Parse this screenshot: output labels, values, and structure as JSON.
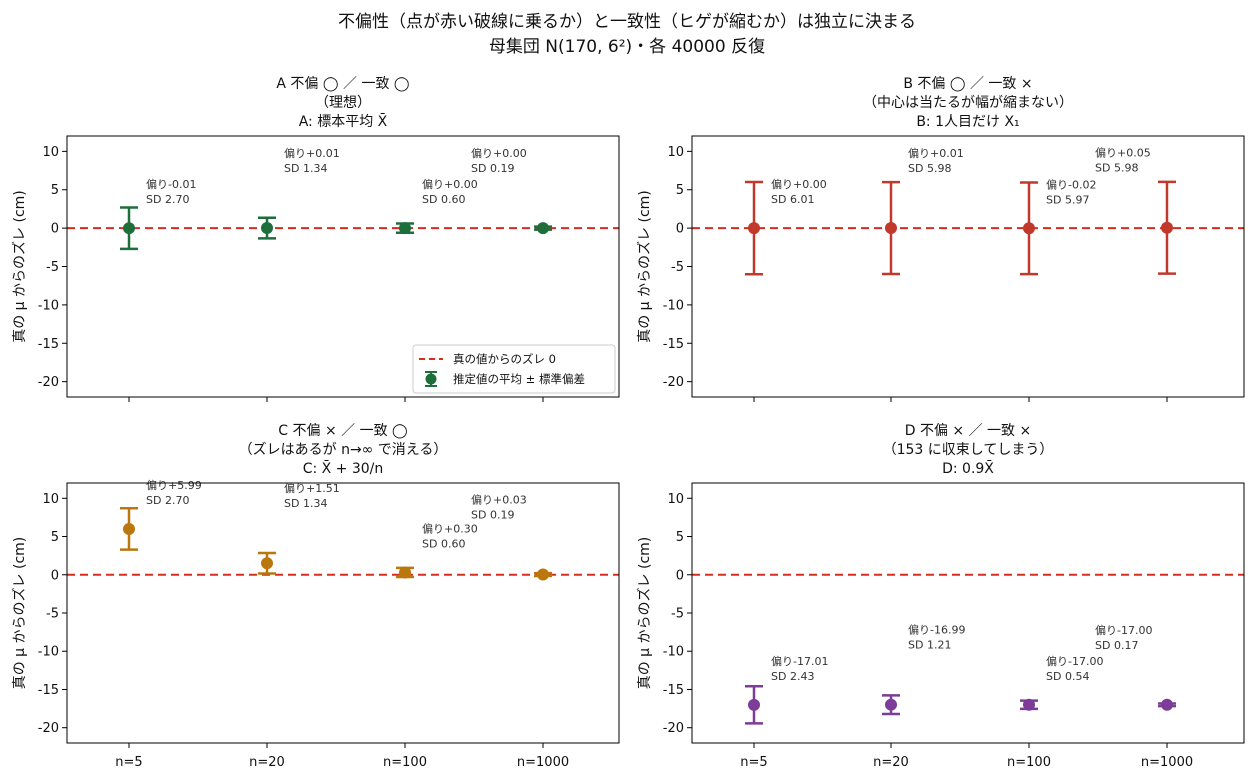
{
  "figure": {
    "suptitle_line1": "不偏性（点が赤い破線に乗るか）と一致性（ヒゲが縮むか）は独立に決まる",
    "suptitle_line2": "母集団 N(170, 6²)・各 40000 反復"
  },
  "colors": {
    "green": "#1e6e3c",
    "red": "#c0392b",
    "orange": "#b9770e",
    "purple": "#7d3c98",
    "ref_line": "#d62d20"
  },
  "chart_data": [
    {
      "type": "scatter",
      "panel": "A",
      "title_lines": [
        "A 不偏 ◯ ／ 一致 ◯",
        "（理想）",
        "A: 標本平均 X̄"
      ],
      "categories": [
        "n=5",
        "n=20",
        "n=100",
        "n=1000"
      ],
      "ylabel": "真の μ からのズレ (cm)",
      "ylim": [
        -22,
        12
      ],
      "yticks": [
        10,
        5,
        0,
        -5,
        -10,
        -15,
        -20
      ],
      "reference_line": 0,
      "color": "green",
      "series": [
        {
          "mean": [
            -0.01,
            0.01,
            0.0,
            0.0
          ],
          "sd": [
            2.7,
            1.34,
            0.6,
            0.19
          ]
        }
      ],
      "annotations": [
        {
          "bias": "偏り-0.01",
          "sd": "SD 2.70"
        },
        {
          "bias": "偏り+0.01",
          "sd": "SD 1.34"
        },
        {
          "bias": "偏り+0.00",
          "sd": "SD 0.60"
        },
        {
          "bias": "偏り+0.00",
          "sd": "SD 0.19"
        }
      ],
      "legend": {
        "placement": "lower-right",
        "entries": [
          "真の値からのズレ 0",
          "推定値の平均 ± 標準偏差"
        ]
      },
      "show_xticklabels": false
    },
    {
      "type": "scatter",
      "panel": "B",
      "title_lines": [
        "B 不偏 ◯ ／ 一致 ×",
        "（中心は当たるが幅が縮まない）",
        "B: 1人目だけ X₁"
      ],
      "categories": [
        "n=5",
        "n=20",
        "n=100",
        "n=1000"
      ],
      "ylabel": "真の μ からのズレ (cm)",
      "ylim": [
        -22,
        12
      ],
      "yticks": [
        10,
        5,
        0,
        -5,
        -10,
        -15,
        -20
      ],
      "reference_line": 0,
      "color": "red",
      "series": [
        {
          "mean": [
            0.0,
            0.01,
            -0.02,
            0.05
          ],
          "sd": [
            6.01,
            5.98,
            5.97,
            5.98
          ]
        }
      ],
      "annotations": [
        {
          "bias": "偏り+0.00",
          "sd": "SD 6.01"
        },
        {
          "bias": "偏り+0.01",
          "sd": "SD 5.98"
        },
        {
          "bias": "偏り-0.02",
          "sd": "SD 5.97"
        },
        {
          "bias": "偏り+0.05",
          "sd": "SD 5.98"
        }
      ],
      "show_xticklabels": false
    },
    {
      "type": "scatter",
      "panel": "C",
      "title_lines": [
        "C 不偏 × ／ 一致 ◯",
        "（ズレはあるが n→∞ で消える）",
        "C: X̄ + 30/n"
      ],
      "categories": [
        "n=5",
        "n=20",
        "n=100",
        "n=1000"
      ],
      "ylabel": "真の μ からのズレ (cm)",
      "ylim": [
        -22,
        12
      ],
      "yticks": [
        10,
        5,
        0,
        -5,
        -10,
        -15,
        -20
      ],
      "reference_line": 0,
      "color": "orange",
      "series": [
        {
          "mean": [
            5.99,
            1.51,
            0.3,
            0.03
          ],
          "sd": [
            2.7,
            1.34,
            0.6,
            0.19
          ]
        }
      ],
      "annotations": [
        {
          "bias": "偏り+5.99",
          "sd": "SD 2.70"
        },
        {
          "bias": "偏り+1.51",
          "sd": "SD 1.34"
        },
        {
          "bias": "偏り+0.30",
          "sd": "SD 0.60"
        },
        {
          "bias": "偏り+0.03",
          "sd": "SD 0.19"
        }
      ],
      "show_xticklabels": true
    },
    {
      "type": "scatter",
      "panel": "D",
      "title_lines": [
        "D 不偏 × ／ 一致 ×",
        "（153 に収束してしまう）",
        "D: 0.9X̄"
      ],
      "categories": [
        "n=5",
        "n=20",
        "n=100",
        "n=1000"
      ],
      "ylabel": "真の μ からのズレ (cm)",
      "ylim": [
        -22,
        12
      ],
      "yticks": [
        10,
        5,
        0,
        -5,
        -10,
        -15,
        -20
      ],
      "reference_line": 0,
      "color": "purple",
      "series": [
        {
          "mean": [
            -17.01,
            -16.99,
            -17.0,
            -17.0
          ],
          "sd": [
            2.43,
            1.21,
            0.54,
            0.17
          ]
        }
      ],
      "annotations": [
        {
          "bias": "偏り-17.01",
          "sd": "SD 2.43"
        },
        {
          "bias": "偏り-16.99",
          "sd": "SD 1.21"
        },
        {
          "bias": "偏り-17.00",
          "sd": "SD 0.54"
        },
        {
          "bias": "偏り-17.00",
          "sd": "SD 0.17"
        }
      ],
      "show_xticklabels": true
    }
  ]
}
